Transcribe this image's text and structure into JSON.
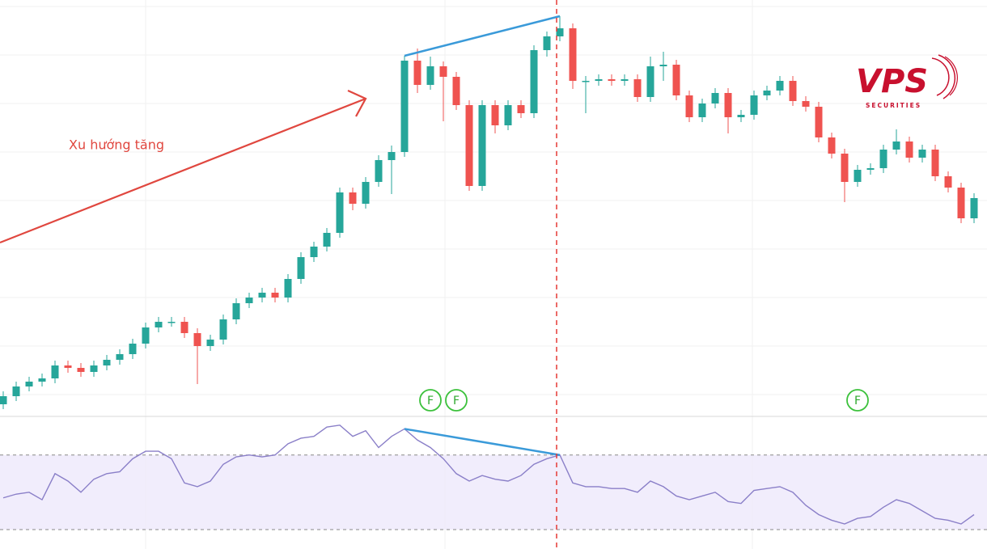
{
  "chart_data": {
    "type": "candlestick",
    "annotation": "Xu hướng tăng",
    "logo": {
      "name": "VPS",
      "sub": "SECURITIES"
    },
    "colors": {
      "up": "#26a69a",
      "down": "#ef5350"
    },
    "ylim": [
      185,
      700
    ],
    "open": [
      200,
      210,
      222,
      228,
      232,
      248,
      245,
      240,
      248,
      255,
      262,
      275,
      295,
      302,
      302,
      288,
      272,
      280,
      305,
      325,
      332,
      338,
      332,
      355,
      382,
      395,
      412,
      462,
      448,
      475,
      502,
      512,
      625,
      595,
      618,
      605,
      570,
      470,
      570,
      545,
      570,
      560,
      638,
      655,
      665,
      600,
      600,
      602,
      600,
      602,
      580,
      618,
      620,
      582,
      555,
      572,
      585,
      555,
      558,
      582,
      588,
      600,
      575,
      568,
      530,
      510,
      475,
      490,
      492,
      515,
      525,
      505,
      515,
      482,
      468,
      430
    ],
    "high": [
      216,
      228,
      234,
      238,
      254,
      254,
      251,
      254,
      261,
      268,
      281,
      301,
      308,
      308,
      308,
      294,
      286,
      311,
      331,
      338,
      344,
      344,
      361,
      388,
      401,
      418,
      468,
      468,
      481,
      508,
      520,
      631,
      640,
      630,
      624,
      611,
      576,
      576,
      576,
      576,
      576,
      644,
      661,
      680,
      671,
      606,
      608,
      608,
      608,
      608,
      630,
      636,
      626,
      588,
      578,
      591,
      591,
      564,
      588,
      594,
      606,
      606,
      581,
      574,
      536,
      516,
      496,
      498,
      521,
      540,
      531,
      521,
      521,
      488,
      474,
      461
    ],
    "low": [
      194,
      204,
      216,
      222,
      226,
      239,
      234,
      234,
      242,
      249,
      256,
      269,
      289,
      296,
      282,
      225,
      266,
      274,
      299,
      319,
      326,
      326,
      326,
      349,
      376,
      389,
      406,
      440,
      442,
      469,
      460,
      506,
      585,
      589,
      550,
      564,
      464,
      464,
      535,
      539,
      554,
      554,
      630,
      649,
      590,
      560,
      594,
      594,
      594,
      574,
      574,
      600,
      576,
      549,
      549,
      566,
      535,
      549,
      552,
      576,
      582,
      569,
      562,
      524,
      504,
      450,
      469,
      484,
      486,
      509,
      499,
      499,
      476,
      462,
      424,
      424
    ],
    "close": [
      210,
      222,
      228,
      232,
      248,
      245,
      240,
      248,
      255,
      262,
      275,
      295,
      302,
      302,
      288,
      272,
      280,
      305,
      325,
      332,
      338,
      332,
      355,
      382,
      395,
      412,
      462,
      448,
      475,
      502,
      512,
      625,
      595,
      618,
      605,
      570,
      470,
      570,
      545,
      570,
      560,
      638,
      655,
      665,
      600,
      600,
      602,
      600,
      602,
      580,
      618,
      620,
      582,
      555,
      572,
      585,
      555,
      558,
      582,
      588,
      600,
      575,
      568,
      530,
      510,
      475,
      490,
      492,
      515,
      525,
      505,
      515,
      482,
      468,
      430,
      455
    ],
    "rsi": {
      "color": "#8a7fc8",
      "ylim": [
        20,
        92
      ],
      "levels": [
        30,
        70
      ],
      "values": [
        47,
        49,
        50,
        46,
        60,
        56,
        50,
        57,
        60,
        61,
        68,
        72,
        72,
        68,
        55,
        53,
        56,
        65,
        69,
        70,
        69,
        70,
        76,
        79,
        80,
        85,
        86,
        80,
        83,
        74,
        80,
        84,
        78,
        74,
        68,
        60,
        56,
        59,
        57,
        56,
        59,
        65,
        68,
        70,
        55,
        53,
        53,
        52,
        52,
        50,
        56,
        53,
        48,
        46,
        48,
        50,
        45,
        44,
        51,
        52,
        53,
        50,
        43,
        38,
        35,
        33,
        36,
        37,
        42,
        46,
        44,
        40,
        36,
        35,
        33,
        38
      ]
    },
    "divergence": {
      "from": 31,
      "to": 43,
      "color": "#3a9ad9"
    },
    "events": [
      {
        "index": 33,
        "label": "F"
      },
      {
        "index": 35,
        "label": "F"
      },
      {
        "index": 66,
        "label": "F"
      }
    ]
  }
}
